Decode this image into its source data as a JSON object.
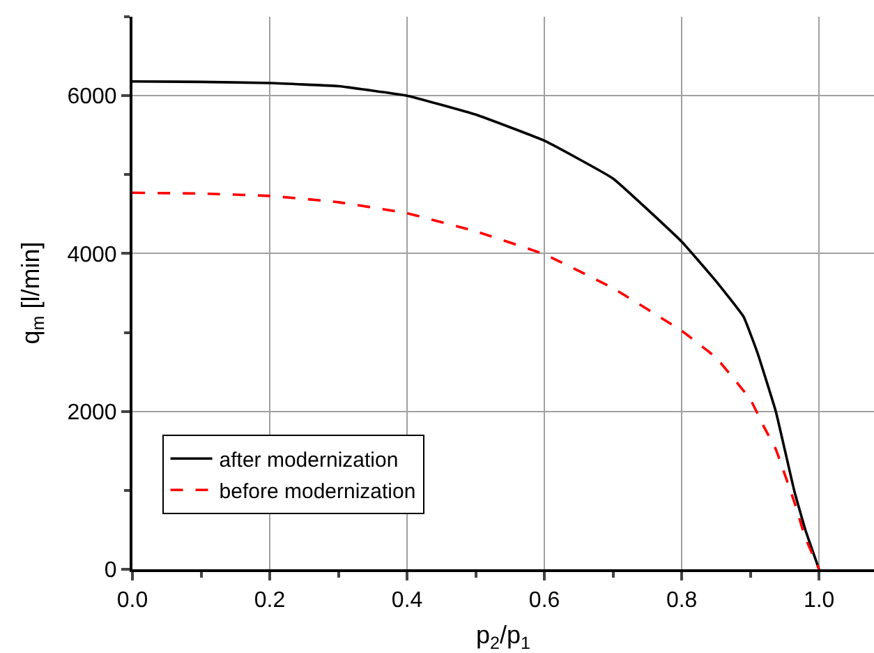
{
  "chart_data": {
    "type": "line",
    "xlabel": "p$_{2}$/p$_{1}$",
    "ylabel": "q$_{m}$ [l/min]",
    "xlim": [
      0,
      1.08
    ],
    "xticks": [
      {
        "value": 0,
        "label": "0.0"
      },
      0.2,
      0.4,
      0.6,
      0.8,
      {
        "value": 1,
        "label": "1.0"
      }
    ],
    "ylim": [
      0,
      7000
    ],
    "yticks": [
      0,
      2000,
      4000,
      6000
    ],
    "grid": true,
    "legend": "bottom left",
    "series": [
      {
        "name": "after modernization",
        "color": "#000000",
        "line_style": "solid",
        "x": [
          0,
          0.1,
          0.2,
          0.3,
          0.4,
          0.5,
          0.6,
          0.7,
          0.8,
          0.85,
          0.89,
          0.91,
          0.937,
          0.964,
          0.98,
          1.0
        ],
        "values": [
          6180,
          6175,
          6160,
          6120,
          6000,
          5760,
          5430,
          4950,
          4150,
          3650,
          3200,
          2750,
          2000,
          990,
          500,
          0
        ]
      },
      {
        "name": "before modernization",
        "color": "#ff0000",
        "line_style": "dashed",
        "x": [
          0,
          0.1,
          0.2,
          0.3,
          0.4,
          0.5,
          0.6,
          0.7,
          0.8,
          0.85,
          0.9,
          0.92,
          0.937,
          0.964,
          0.98,
          1.0
        ],
        "values": [
          4770,
          4760,
          4730,
          4650,
          4510,
          4280,
          3990,
          3560,
          3020,
          2680,
          2150,
          1800,
          1520,
          850,
          400,
          0
        ]
      }
    ]
  }
}
